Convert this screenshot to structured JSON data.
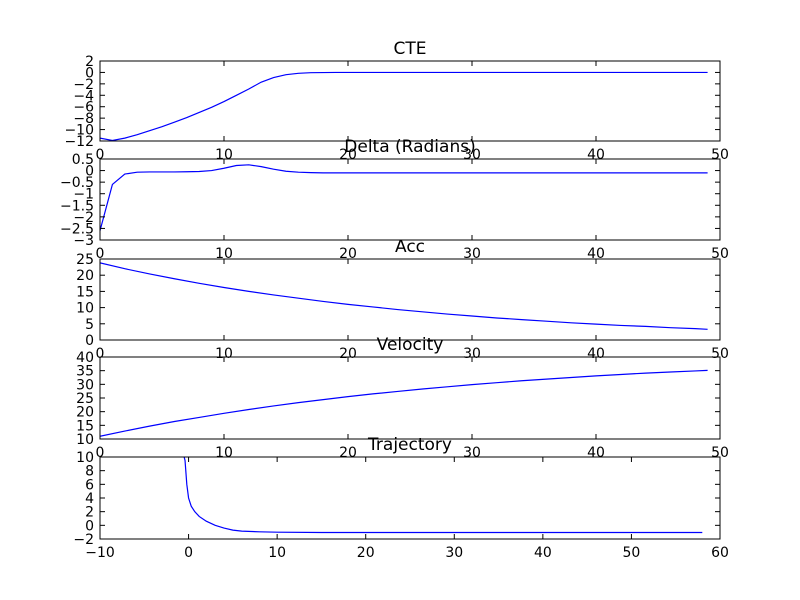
{
  "chart_data": [
    {
      "type": "line",
      "title": "CTE",
      "xlim": [
        0,
        50
      ],
      "ylim": [
        -12,
        2
      ],
      "xticks": [
        0,
        10,
        20,
        30,
        40,
        50
      ],
      "yticks": [
        -12,
        -10,
        -8,
        -6,
        -4,
        -2,
        0,
        2
      ],
      "x": [
        0,
        1,
        2,
        3,
        4,
        5,
        6,
        7,
        8,
        9,
        10,
        11,
        12,
        13,
        14,
        15,
        16,
        17,
        18,
        19,
        20,
        22,
        24,
        26,
        28,
        30,
        35,
        40,
        45,
        49
      ],
      "y": [
        -11.5,
        -11.9,
        -11.5,
        -10.9,
        -10.2,
        -9.5,
        -8.7,
        -7.9,
        -7.0,
        -6.1,
        -5.1,
        -4.0,
        -2.9,
        -1.7,
        -0.9,
        -0.4,
        -0.15,
        -0.05,
        -0.02,
        0,
        0,
        0,
        0,
        0,
        0,
        0,
        0,
        0,
        0,
        0
      ]
    },
    {
      "type": "line",
      "title": "Delta (Radians)",
      "xlim": [
        0,
        50
      ],
      "ylim": [
        -3.0,
        0.5
      ],
      "xticks": [
        0,
        10,
        20,
        30,
        40,
        50
      ],
      "yticks": [
        -3.0,
        -2.5,
        -2.0,
        -1.5,
        -1.0,
        -0.5,
        0.0,
        0.5
      ],
      "x": [
        0,
        1,
        2,
        3,
        4,
        5,
        6,
        7,
        8,
        9,
        10,
        11,
        12,
        13,
        14,
        15,
        16,
        17,
        18,
        19,
        20,
        25,
        30,
        35,
        40,
        45,
        49
      ],
      "y": [
        -2.6,
        -0.6,
        -0.15,
        -0.07,
        -0.06,
        -0.06,
        -0.06,
        -0.05,
        -0.04,
        0.0,
        0.1,
        0.22,
        0.25,
        0.17,
        0.06,
        -0.03,
        -0.07,
        -0.09,
        -0.1,
        -0.1,
        -0.1,
        -0.1,
        -0.1,
        -0.1,
        -0.1,
        -0.1,
        -0.1
      ]
    },
    {
      "type": "line",
      "title": "Acc",
      "xlim": [
        0,
        50
      ],
      "ylim": [
        0,
        25
      ],
      "xticks": [
        0,
        10,
        20,
        30,
        40,
        50
      ],
      "yticks": [
        0,
        5,
        10,
        15,
        20,
        25
      ],
      "x": [
        0,
        2,
        4,
        6,
        8,
        10,
        12,
        14,
        16,
        18,
        20,
        22,
        24,
        26,
        28,
        30,
        32,
        34,
        36,
        38,
        40,
        42,
        44,
        46,
        48,
        49
      ],
      "y": [
        23.8,
        22.0,
        20.4,
        18.9,
        17.5,
        16.2,
        15.0,
        13.9,
        12.9,
        11.9,
        11.0,
        10.2,
        9.4,
        8.7,
        8.0,
        7.4,
        6.8,
        6.3,
        5.8,
        5.3,
        4.9,
        4.5,
        4.2,
        3.8,
        3.5,
        3.3
      ]
    },
    {
      "type": "line",
      "title": "Velocity",
      "xlim": [
        0,
        50
      ],
      "ylim": [
        10,
        40
      ],
      "xticks": [
        0,
        10,
        20,
        30,
        40,
        50
      ],
      "yticks": [
        10,
        15,
        20,
        25,
        30,
        35,
        40
      ],
      "x": [
        0,
        2,
        4,
        6,
        8,
        10,
        12,
        14,
        16,
        18,
        20,
        22,
        24,
        26,
        28,
        30,
        32,
        34,
        36,
        38,
        40,
        42,
        44,
        46,
        48,
        49
      ],
      "y": [
        11.0,
        12.9,
        14.7,
        16.4,
        17.9,
        19.4,
        20.8,
        22.1,
        23.3,
        24.4,
        25.5,
        26.5,
        27.4,
        28.3,
        29.1,
        29.9,
        30.6,
        31.3,
        31.9,
        32.5,
        33.1,
        33.6,
        34.1,
        34.5,
        34.9,
        35.1
      ]
    },
    {
      "type": "line",
      "title": "Trajectory",
      "xlim": [
        -10,
        60
      ],
      "ylim": [
        -2,
        10
      ],
      "xticks": [
        -10,
        0,
        10,
        20,
        30,
        40,
        50,
        60
      ],
      "yticks": [
        -2,
        0,
        2,
        4,
        6,
        8,
        10
      ],
      "x": [
        -0.6,
        -0.4,
        -0.2,
        0,
        0.3,
        0.7,
        1.2,
        2,
        3,
        4,
        5,
        6,
        8,
        10,
        15,
        20,
        30,
        40,
        50,
        58
      ],
      "y": [
        10.5,
        9.5,
        6.0,
        4.0,
        2.8,
        2.0,
        1.3,
        0.6,
        0.0,
        -0.4,
        -0.7,
        -0.85,
        -0.95,
        -1.0,
        -1.05,
        -1.05,
        -1.05,
        -1.05,
        -1.05,
        -1.05
      ]
    }
  ]
}
